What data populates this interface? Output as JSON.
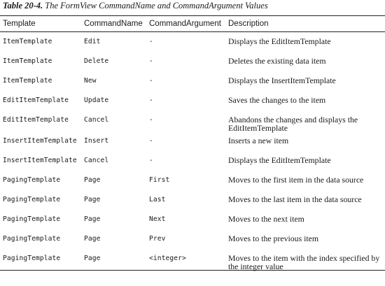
{
  "caption": {
    "label": "Table 20-4.",
    "title": "The FormView CommandName and CommandArgument Values"
  },
  "table": {
    "headers": [
      "Template",
      "CommandName",
      "CommandArgument",
      "Description"
    ],
    "rows": [
      {
        "template": "ItemTemplate",
        "command_name": "Edit",
        "command_argument": "-",
        "description": "Displays the EditItemTemplate"
      },
      {
        "template": "ItemTemplate",
        "command_name": "Delete",
        "command_argument": "-",
        "description": "Deletes the existing data item"
      },
      {
        "template": "ItemTemplate",
        "command_name": "New",
        "command_argument": "-",
        "description": "Displays the InsertItemTemplate"
      },
      {
        "template": "EditItemTemplate",
        "command_name": "Update",
        "command_argument": "-",
        "description": "Saves the changes to the item"
      },
      {
        "template": "EditItemTemplate",
        "command_name": "Cancel",
        "command_argument": "-",
        "description": "Abandons the changes and displays the EditItemTemplate"
      },
      {
        "template": "InsertItemTemplate",
        "command_name": "Insert",
        "command_argument": "-",
        "description": "Inserts a new item"
      },
      {
        "template": "InsertItemTemplate",
        "command_name": "Cancel",
        "command_argument": "-",
        "description": "Displays the EditItemTemplate"
      },
      {
        "template": "PagingTemplate",
        "command_name": "Page",
        "command_argument": "First",
        "description": "Moves to the first item in the data source"
      },
      {
        "template": "PagingTemplate",
        "command_name": "Page",
        "command_argument": "Last",
        "description": "Moves to the last item in the data source"
      },
      {
        "template": "PagingTemplate",
        "command_name": "Page",
        "command_argument": "Next",
        "description": "Moves to the next item"
      },
      {
        "template": "PagingTemplate",
        "command_name": "Page",
        "command_argument": "Prev",
        "description": "Moves to the previous item"
      },
      {
        "template": "PagingTemplate",
        "command_name": "Page",
        "command_argument": "<integer>",
        "description": "Moves to the item with the index specified by the integer value"
      }
    ]
  }
}
